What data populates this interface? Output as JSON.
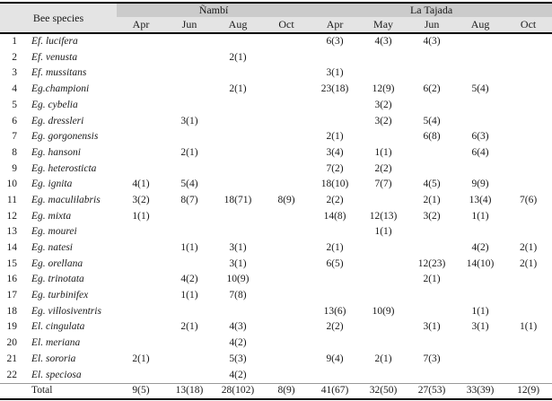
{
  "colors": {
    "group_band_bg": "#cbcbcb",
    "subheader_bg": "#e4e4e4",
    "rule_color": "#000000"
  },
  "table": {
    "species_header": "Bee species",
    "groups": [
      {
        "name": "Ñambí",
        "months": [
          "Apr",
          "Jun",
          "Aug",
          "Oct"
        ]
      },
      {
        "name": "La Tajada",
        "months": [
          "Apr",
          "May",
          "Jun",
          "Aug",
          "Oct"
        ]
      }
    ],
    "rows": [
      {
        "num": "1",
        "species": "Ef. lucifera",
        "values": [
          "",
          "",
          "",
          "",
          "6(3)",
          "4(3)",
          "4(3)",
          "",
          ""
        ]
      },
      {
        "num": "2",
        "species": "Ef. venusta",
        "values": [
          "",
          "",
          "2(1)",
          "",
          "",
          "",
          "",
          "",
          ""
        ]
      },
      {
        "num": "3",
        "species": "Ef. mussitans",
        "values": [
          "",
          "",
          "",
          "",
          "3(1)",
          "",
          "",
          "",
          ""
        ]
      },
      {
        "num": "4",
        "species": "Eg.championi",
        "values": [
          "",
          "",
          "2(1)",
          "",
          "23(18)",
          "12(9)",
          "6(2)",
          "5(4)",
          ""
        ]
      },
      {
        "num": "5",
        "species": "Eg. cybelia",
        "values": [
          "",
          "",
          "",
          "",
          "",
          "3(2)",
          "",
          "",
          ""
        ]
      },
      {
        "num": "6",
        "species": "Eg. dressleri",
        "values": [
          "",
          "3(1)",
          "",
          "",
          "",
          "3(2)",
          "5(4)",
          "",
          ""
        ]
      },
      {
        "num": "7",
        "species": "Eg. gorgonensis",
        "values": [
          "",
          "",
          "",
          "",
          "2(1)",
          "",
          "6(8)",
          "6(3)",
          ""
        ]
      },
      {
        "num": "8",
        "species": "Eg. hansoni",
        "values": [
          "",
          "2(1)",
          "",
          "",
          "3(4)",
          "1(1)",
          "",
          "6(4)",
          ""
        ]
      },
      {
        "num": "9",
        "species": "Eg. heterosticta",
        "values": [
          "",
          "",
          "",
          "",
          "7(2)",
          "2(2)",
          "",
          "",
          ""
        ]
      },
      {
        "num": "10",
        "species": "Eg. ignita",
        "values": [
          "4(1)",
          "5(4)",
          "",
          "",
          "18(10)",
          "7(7)",
          "4(5)",
          "9(9)",
          ""
        ]
      },
      {
        "num": "11",
        "species": "Eg. maculilabris",
        "values": [
          "3(2)",
          "8(7)",
          "18(71)",
          "8(9)",
          "2(2)",
          "",
          "2(1)",
          "13(4)",
          "7(6)"
        ]
      },
      {
        "num": "12",
        "species": "Eg. mixta",
        "values": [
          "1(1)",
          "",
          "",
          "",
          "14(8)",
          "12(13)",
          "3(2)",
          "1(1)",
          ""
        ]
      },
      {
        "num": "13",
        "species": "Eg. mourei",
        "values": [
          "",
          "",
          "",
          "",
          "",
          "1(1)",
          "",
          "",
          ""
        ]
      },
      {
        "num": "14",
        "species": "Eg. natesi",
        "values": [
          "",
          "1(1)",
          "3(1)",
          "",
          "2(1)",
          "",
          "",
          "4(2)",
          "2(1)"
        ]
      },
      {
        "num": "15",
        "species": "Eg. orellana",
        "values": [
          "",
          "",
          "3(1)",
          "",
          "6(5)",
          "",
          "12(23)",
          "14(10)",
          "2(1)"
        ]
      },
      {
        "num": "16",
        "species": "Eg. trinotata",
        "values": [
          "",
          "4(2)",
          "10(9)",
          "",
          "",
          "",
          "2(1)",
          "",
          ""
        ]
      },
      {
        "num": "17",
        "species": "Eg. turbinifex",
        "values": [
          "",
          "1(1)",
          "7(8)",
          "",
          "",
          "",
          "",
          "",
          ""
        ]
      },
      {
        "num": "18",
        "species": "Eg. villosiventris",
        "values": [
          "",
          "",
          "",
          "",
          "13(6)",
          "10(9)",
          "",
          "1(1)",
          ""
        ]
      },
      {
        "num": "19",
        "species": "El. cingulata",
        "values": [
          "",
          "2(1)",
          "4(3)",
          "",
          "2(2)",
          "",
          "3(1)",
          "3(1)",
          "1(1)"
        ]
      },
      {
        "num": "20",
        "species": "El. meriana",
        "values": [
          "",
          "",
          "4(2)",
          "",
          "",
          "",
          "",
          "",
          ""
        ]
      },
      {
        "num": "21",
        "species": "El. sororia",
        "values": [
          "2(1)",
          "",
          "5(3)",
          "",
          "9(4)",
          "2(1)",
          "7(3)",
          "",
          ""
        ]
      },
      {
        "num": "22",
        "species": "El. speciosa",
        "values": [
          "",
          "",
          "4(2)",
          "",
          "",
          "",
          "",
          "",
          ""
        ]
      }
    ],
    "total": {
      "label": "Total",
      "values": [
        "9(5)",
        "13(18)",
        "28(102)",
        "8(9)",
        "41(67)",
        "32(50)",
        "27(53)",
        "33(39)",
        "12(9)"
      ]
    }
  }
}
